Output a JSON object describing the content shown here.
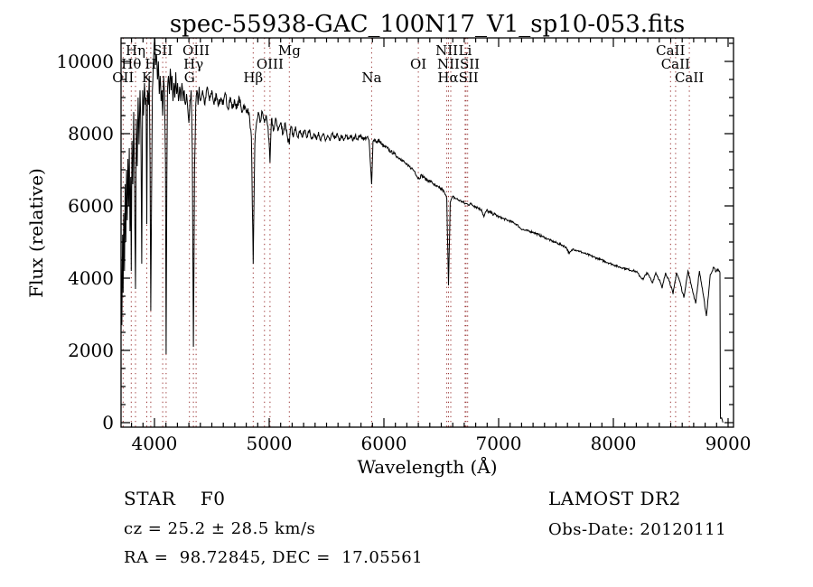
{
  "title": "spec-55938-GAC_100N17_V1_sp10-053.fits",
  "annotations": {
    "class_label": "STAR    F0",
    "cz": "cz = 25.2 ± 28.5 km/s",
    "radec": "RA =  98.72845, DEC =  17.05561",
    "survey": "LAMOST DR2",
    "obs_date": "Obs-Date: 20120111"
  },
  "chart_data": {
    "type": "line",
    "title": "spec-55938-GAC_100N17_V1_sp10-053.fits",
    "xlabel": "Wavelength (Å)",
    "ylabel": "Flux (relative)",
    "xlim": [
      3709,
      9047
    ],
    "ylim": [
      -125,
      10650
    ],
    "x_major_ticks": [
      4000,
      5000,
      6000,
      7000,
      8000,
      9000
    ],
    "y_major_ticks": [
      0,
      2000,
      4000,
      6000,
      8000,
      10000
    ],
    "x_minor_step": 100,
    "y_minor_step": 500,
    "grid": false,
    "line_color": "#000000",
    "marker_line_color": "#993333",
    "marker_wavelengths": [
      3727,
      3798,
      3835,
      3933,
      3968,
      4072,
      4102,
      4305,
      4340,
      4363,
      4861,
      4959,
      5007,
      5176,
      5893,
      6300,
      6548,
      6563,
      6583,
      6708,
      6716,
      6730,
      8498,
      8542,
      8662
    ],
    "spectral_labels": [
      {
        "text": "Hη",
        "row": 1,
        "wavelength": 3835
      },
      {
        "text": "SII",
        "row": 1,
        "wavelength": 4072
      },
      {
        "text": "OIII",
        "row": 1,
        "wavelength": 4363
      },
      {
        "text": "Mg",
        "row": 1,
        "wavelength": 5176
      },
      {
        "text": "NII",
        "row": 1,
        "wavelength": 6548
      },
      {
        "text": "Li",
        "row": 1,
        "wavelength": 6708
      },
      {
        "text": "CaII",
        "row": 1,
        "wavelength": 8498
      },
      {
        "text": "Hθ",
        "row": 2,
        "wavelength": 3798
      },
      {
        "text": "H",
        "row": 2,
        "wavelength": 3968
      },
      {
        "text": "Hγ",
        "row": 2,
        "wavelength": 4340
      },
      {
        "text": "OIII",
        "row": 2,
        "wavelength": 5007
      },
      {
        "text": "OI",
        "row": 2,
        "wavelength": 6300
      },
      {
        "text": "NIISII",
        "row": 2,
        "wavelength": 6650
      },
      {
        "text": "CaII",
        "row": 2,
        "wavelength": 8542
      },
      {
        "text": "OII",
        "row": 3,
        "wavelength": 3727
      },
      {
        "text": "K",
        "row": 3,
        "wavelength": 3933
      },
      {
        "text": "G",
        "row": 3,
        "wavelength": 4305
      },
      {
        "text": "Hβ",
        "row": 3,
        "wavelength": 4861
      },
      {
        "text": "Na",
        "row": 3,
        "wavelength": 5893
      },
      {
        "text": "HαSII",
        "row": 3,
        "wavelength": 6646
      },
      {
        "text": "CaII",
        "row": 3,
        "wavelength": 8662
      }
    ],
    "noise_amplitude": [
      {
        "to": 4400,
        "amp": 140
      },
      {
        "to": 5200,
        "amp": 110
      },
      {
        "to": 6000,
        "amp": 60
      },
      {
        "to": 7000,
        "amp": 45
      },
      {
        "to": 8200,
        "amp": 30
      },
      {
        "to": 9100,
        "amp": 35
      }
    ],
    "points": [
      [
        3710,
        4600
      ],
      [
        3716,
        2700
      ],
      [
        3722,
        5200
      ],
      [
        3727,
        3600
      ],
      [
        3733,
        5800
      ],
      [
        3739,
        4200
      ],
      [
        3745,
        6600
      ],
      [
        3751,
        5000
      ],
      [
        3757,
        7000
      ],
      [
        3763,
        5600
      ],
      [
        3769,
        7300
      ],
      [
        3775,
        6000
      ],
      [
        3781,
        7600
      ],
      [
        3787,
        5300
      ],
      [
        3793,
        6800
      ],
      [
        3798,
        4200
      ],
      [
        3804,
        7800
      ],
      [
        3811,
        6600
      ],
      [
        3819,
        8600
      ],
      [
        3827,
        6300
      ],
      [
        3835,
        3700
      ],
      [
        3842,
        8400
      ],
      [
        3850,
        7100
      ],
      [
        3858,
        9000
      ],
      [
        3866,
        7700
      ],
      [
        3874,
        9200
      ],
      [
        3882,
        8100
      ],
      [
        3889,
        4400
      ],
      [
        3897,
        9200
      ],
      [
        3905,
        8500
      ],
      [
        3913,
        9400
      ],
      [
        3921,
        8800
      ],
      [
        3927,
        9000
      ],
      [
        3933,
        5500
      ],
      [
        3940,
        9200
      ],
      [
        3948,
        8800
      ],
      [
        3955,
        9600
      ],
      [
        3962,
        7200
      ],
      [
        3968,
        3100
      ],
      [
        3975,
        6300
      ],
      [
        3982,
        9200
      ],
      [
        3990,
        9900
      ],
      [
        3998,
        10500
      ],
      [
        4004,
        10640
      ],
      [
        4010,
        9900
      ],
      [
        4018,
        10200
      ],
      [
        4026,
        9500
      ],
      [
        4034,
        10000
      ],
      [
        4042,
        9100
      ],
      [
        4050,
        9600
      ],
      [
        4058,
        8900
      ],
      [
        4066,
        9200
      ],
      [
        4072,
        8500
      ],
      [
        4080,
        9600
      ],
      [
        4088,
        9100
      ],
      [
        4096,
        7200
      ],
      [
        4102,
        1900
      ],
      [
        4108,
        6700
      ],
      [
        4114,
        9200
      ],
      [
        4122,
        9600
      ],
      [
        4130,
        9100
      ],
      [
        4138,
        9800
      ],
      [
        4146,
        9200
      ],
      [
        4154,
        9600
      ],
      [
        4162,
        8900
      ],
      [
        4170,
        9400
      ],
      [
        4178,
        9000
      ],
      [
        4186,
        9700
      ],
      [
        4194,
        9100
      ],
      [
        4202,
        9400
      ],
      [
        4210,
        8900
      ],
      [
        4220,
        9300
      ],
      [
        4230,
        8900
      ],
      [
        4240,
        9400
      ],
      [
        4250,
        8900
      ],
      [
        4260,
        9200
      ],
      [
        4270,
        8800
      ],
      [
        4280,
        9100
      ],
      [
        4290,
        8700
      ],
      [
        4300,
        8300
      ],
      [
        4310,
        8900
      ],
      [
        4320,
        9200
      ],
      [
        4330,
        7500
      ],
      [
        4340,
        2100
      ],
      [
        4350,
        7100
      ],
      [
        4360,
        8800
      ],
      [
        4370,
        9200
      ],
      [
        4380,
        8800
      ],
      [
        4390,
        9300
      ],
      [
        4400,
        8900
      ],
      [
        4420,
        9200
      ],
      [
        4440,
        8800
      ],
      [
        4460,
        9300
      ],
      [
        4480,
        8900
      ],
      [
        4500,
        9200
      ],
      [
        4520,
        8800
      ],
      [
        4540,
        9100
      ],
      [
        4560,
        8800
      ],
      [
        4580,
        9000
      ],
      [
        4600,
        8800
      ],
      [
        4620,
        9100
      ],
      [
        4640,
        8700
      ],
      [
        4660,
        9000
      ],
      [
        4680,
        8700
      ],
      [
        4700,
        8900
      ],
      [
        4720,
        8700
      ],
      [
        4740,
        9000
      ],
      [
        4760,
        8600
      ],
      [
        4780,
        8800
      ],
      [
        4800,
        8600
      ],
      [
        4815,
        8700
      ],
      [
        4830,
        8400
      ],
      [
        4845,
        7900
      ],
      [
        4861,
        4400
      ],
      [
        4875,
        7700
      ],
      [
        4890,
        8300
      ],
      [
        4905,
        8600
      ],
      [
        4920,
        8300
      ],
      [
        4940,
        8600
      ],
      [
        4959,
        8300
      ],
      [
        4975,
        8500
      ],
      [
        4990,
        8200
      ],
      [
        5007,
        7200
      ],
      [
        5020,
        8400
      ],
      [
        5040,
        8100
      ],
      [
        5060,
        8400
      ],
      [
        5080,
        8100
      ],
      [
        5100,
        8300
      ],
      [
        5120,
        8000
      ],
      [
        5140,
        8300
      ],
      [
        5160,
        7900
      ],
      [
        5176,
        7700
      ],
      [
        5190,
        8200
      ],
      [
        5210,
        7900
      ],
      [
        5230,
        8200
      ],
      [
        5250,
        7900
      ],
      [
        5270,
        8100
      ],
      [
        5290,
        7900
      ],
      [
        5310,
        8100
      ],
      [
        5330,
        7900
      ],
      [
        5350,
        8100
      ],
      [
        5370,
        7850
      ],
      [
        5390,
        8000
      ],
      [
        5410,
        7850
      ],
      [
        5430,
        8050
      ],
      [
        5450,
        7800
      ],
      [
        5470,
        8000
      ],
      [
        5490,
        7800
      ],
      [
        5510,
        7950
      ],
      [
        5530,
        7800
      ],
      [
        5550,
        8000
      ],
      [
        5570,
        7850
      ],
      [
        5590,
        8000
      ],
      [
        5610,
        7800
      ],
      [
        5630,
        7950
      ],
      [
        5650,
        7800
      ],
      [
        5670,
        7950
      ],
      [
        5690,
        7850
      ],
      [
        5710,
        7950
      ],
      [
        5730,
        7800
      ],
      [
        5750,
        7950
      ],
      [
        5770,
        7850
      ],
      [
        5790,
        7950
      ],
      [
        5810,
        7900
      ],
      [
        5830,
        7850
      ],
      [
        5850,
        7900
      ],
      [
        5870,
        7820
      ],
      [
        5893,
        6600
      ],
      [
        5905,
        7780
      ],
      [
        5920,
        7850
      ],
      [
        5940,
        7750
      ],
      [
        5960,
        7820
      ],
      [
        5980,
        7700
      ],
      [
        6000,
        7650
      ],
      [
        6030,
        7600
      ],
      [
        6060,
        7500
      ],
      [
        6090,
        7450
      ],
      [
        6120,
        7350
      ],
      [
        6150,
        7300
      ],
      [
        6180,
        7200
      ],
      [
        6210,
        7100
      ],
      [
        6240,
        7050
      ],
      [
        6270,
        6950
      ],
      [
        6300,
        6750
      ],
      [
        6330,
        6850
      ],
      [
        6360,
        6750
      ],
      [
        6390,
        6700
      ],
      [
        6420,
        6650
      ],
      [
        6450,
        6550
      ],
      [
        6480,
        6500
      ],
      [
        6510,
        6450
      ],
      [
        6530,
        6350
      ],
      [
        6548,
        6200
      ],
      [
        6563,
        3800
      ],
      [
        6578,
        6100
      ],
      [
        6600,
        6250
      ],
      [
        6630,
        6200
      ],
      [
        6660,
        6150
      ],
      [
        6690,
        6100
      ],
      [
        6708,
        6060
      ],
      [
        6730,
        6050
      ],
      [
        6760,
        6050
      ],
      [
        6790,
        6000
      ],
      [
        6820,
        5950
      ],
      [
        6850,
        5900
      ],
      [
        6872,
        5700
      ],
      [
        6895,
        5880
      ],
      [
        6920,
        5820
      ],
      [
        6945,
        5790
      ],
      [
        6970,
        5760
      ],
      [
        7000,
        5700
      ],
      [
        7040,
        5650
      ],
      [
        7080,
        5600
      ],
      [
        7120,
        5550
      ],
      [
        7160,
        5480
      ],
      [
        7190,
        5380
      ],
      [
        7230,
        5320
      ],
      [
        7270,
        5300
      ],
      [
        7310,
        5260
      ],
      [
        7350,
        5200
      ],
      [
        7390,
        5140
      ],
      [
        7430,
        5080
      ],
      [
        7470,
        5020
      ],
      [
        7510,
        4970
      ],
      [
        7550,
        4920
      ],
      [
        7590,
        4850
      ],
      [
        7615,
        4680
      ],
      [
        7650,
        4810
      ],
      [
        7690,
        4760
      ],
      [
        7730,
        4710
      ],
      [
        7770,
        4660
      ],
      [
        7810,
        4610
      ],
      [
        7850,
        4560
      ],
      [
        7890,
        4510
      ],
      [
        7930,
        4460
      ],
      [
        7970,
        4410
      ],
      [
        8010,
        4360
      ],
      [
        8050,
        4310
      ],
      [
        8090,
        4280
      ],
      [
        8130,
        4240
      ],
      [
        8170,
        4210
      ],
      [
        8200,
        4180
      ],
      [
        8230,
        4060
      ],
      [
        8260,
        3960
      ],
      [
        8290,
        4150
      ],
      [
        8320,
        4010
      ],
      [
        8339,
        3870
      ],
      [
        8370,
        4150
      ],
      [
        8400,
        3960
      ],
      [
        8425,
        3720
      ],
      [
        8455,
        4150
      ],
      [
        8490,
        3910
      ],
      [
        8520,
        3560
      ],
      [
        8550,
        4150
      ],
      [
        8580,
        3900
      ],
      [
        8614,
        3460
      ],
      [
        8650,
        4200
      ],
      [
        8680,
        3800
      ],
      [
        8717,
        3300
      ],
      [
        8750,
        4200
      ],
      [
        8780,
        3600
      ],
      [
        8811,
        2950
      ],
      [
        8845,
        4100
      ],
      [
        8874,
        4300
      ],
      [
        8895,
        4180
      ],
      [
        8912,
        4250
      ],
      [
        8929,
        4150
      ],
      [
        8933,
        120
      ],
      [
        8948,
        90
      ],
      [
        8958,
        10
      ]
    ]
  }
}
